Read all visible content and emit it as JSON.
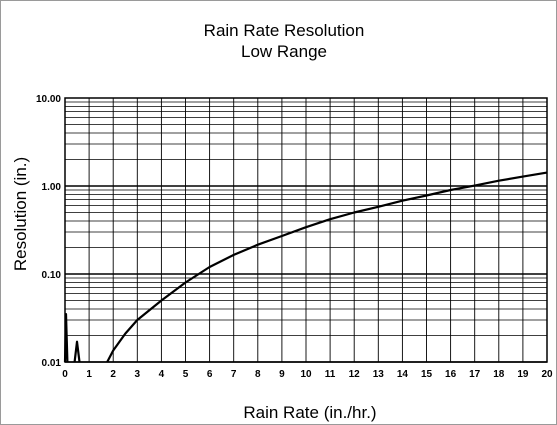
{
  "chart_data": {
    "type": "line",
    "title": [
      "Rain Rate Resolution",
      "Low Range"
    ],
    "xlabel": "Rain Rate (in./hr.)",
    "ylabel": "Resolution (in.)",
    "x_scale": "linear",
    "y_scale": "log",
    "xlim": [
      0,
      20
    ],
    "ylim": [
      0.01,
      10
    ],
    "grid": true,
    "x_ticks": [
      0,
      1,
      2,
      3,
      4,
      5,
      6,
      7,
      8,
      9,
      10,
      11,
      12,
      13,
      14,
      15,
      16,
      17,
      18,
      19,
      20
    ],
    "x_tick_labels": [
      "0",
      "1",
      "2",
      "3",
      "4",
      "5",
      "6",
      "7",
      "8",
      "9",
      "10",
      "11",
      "12",
      "13",
      "14",
      "15",
      "16",
      "17",
      "18",
      "19",
      "20"
    ],
    "y_ticks": [
      0.01,
      0.1,
      1,
      10
    ],
    "y_tick_labels": [
      "0.01",
      "0.10",
      "1.00",
      "10.00"
    ],
    "series": [
      {
        "color": "#000000",
        "x": [
          1.75,
          2,
          2.5,
          3,
          4,
          5,
          6,
          7,
          8,
          9,
          10,
          11,
          12,
          13,
          14,
          15,
          16,
          17,
          18,
          19,
          20
        ],
        "y": [
          0.01,
          0.0135,
          0.021,
          0.03,
          0.05,
          0.08,
          0.12,
          0.165,
          0.215,
          0.27,
          0.34,
          0.42,
          0.5,
          0.58,
          0.68,
          0.78,
          0.9,
          1.01,
          1.15,
          1.28,
          1.42
        ]
      },
      {
        "color": "#000000",
        "x": [
          0,
          0.04,
          0.1
        ],
        "y": [
          0.01,
          0.035,
          0.01
        ]
      },
      {
        "color": "#000000",
        "x": [
          0.4,
          0.5,
          0.6
        ],
        "y": [
          0.01,
          0.017,
          0.01
        ]
      }
    ]
  }
}
